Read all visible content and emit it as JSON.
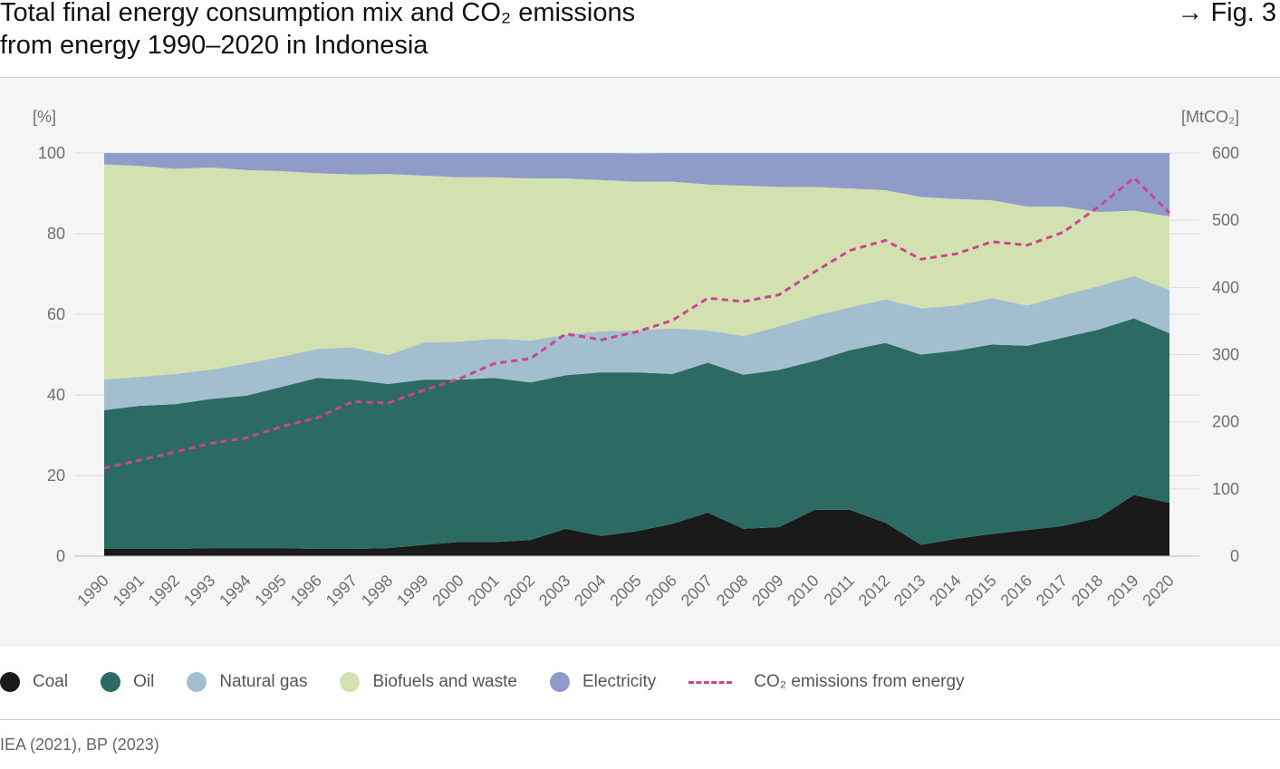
{
  "header": {
    "title_line1": "Total final energy consumption mix and CO₂ emissions",
    "title_line2": "from energy 1990–2020 in Indonesia",
    "fig_ref": "→ Fig. 3"
  },
  "source": "IEA (2021), BP (2023)",
  "colors": {
    "coal": "#1a1a1a",
    "oil": "#2c6b63",
    "natural_gas": "#a3bfcf",
    "biofuels": "#d3e1b0",
    "electricity": "#8f9cc7",
    "co2": "#cc4490",
    "panel_bg": "#f5f5f5"
  },
  "legend": [
    {
      "key": "coal",
      "label": "Coal",
      "kind": "circle"
    },
    {
      "key": "oil",
      "label": "Oil",
      "kind": "circle"
    },
    {
      "key": "natural_gas",
      "label": "Natural gas",
      "kind": "circle"
    },
    {
      "key": "biofuels",
      "label": "Biofuels and waste",
      "kind": "circle"
    },
    {
      "key": "electricity",
      "label": "Electricity",
      "kind": "circle"
    },
    {
      "key": "co2",
      "label": "CO₂ emissions from energy",
      "kind": "dashed-line"
    }
  ],
  "chart_data": {
    "type": "area",
    "stacked": true,
    "y_left_label": "[%]",
    "y_right_label": "[MtCO₂]",
    "y_left_ticks": [
      "100",
      "80",
      "60",
      "40",
      "20",
      "0"
    ],
    "y_right_ticks": [
      "600",
      "500",
      "400",
      "300",
      "200",
      "100",
      "0"
    ],
    "ylim_left": [
      0,
      100
    ],
    "ylim_right": [
      0,
      600
    ],
    "grid": true,
    "legend_position": "bottom",
    "x": [
      1990,
      1991,
      1992,
      1993,
      1994,
      1995,
      1996,
      1997,
      1998,
      1999,
      2000,
      2001,
      2002,
      2003,
      2004,
      2005,
      2006,
      2007,
      2008,
      2009,
      2010,
      2011,
      2012,
      2013,
      2014,
      2015,
      2016,
      2017,
      2018,
      2019,
      2020
    ],
    "series": [
      {
        "key": "coal",
        "name": "Coal",
        "axis": "left",
        "values": [
          1.8,
          1.8,
          1.8,
          2.0,
          2.0,
          2.0,
          1.8,
          1.8,
          2.0,
          2.8,
          3.5,
          3.5,
          4.0,
          6.8,
          5.0,
          6.2,
          8.0,
          10.8,
          6.8,
          7.2,
          11.5,
          11.5,
          8.3,
          2.8,
          4.3,
          5.5,
          6.5,
          7.5,
          9.5,
          15.2,
          13.2
        ]
      },
      {
        "key": "oil",
        "name": "Oil",
        "axis": "left",
        "values": [
          34.4,
          35.5,
          35.9,
          37.0,
          37.8,
          40.0,
          42.4,
          42.0,
          40.7,
          41.0,
          40.3,
          40.7,
          39.1,
          38.1,
          40.6,
          39.4,
          37.2,
          37.2,
          38.2,
          39.0,
          36.9,
          39.6,
          44.6,
          47.2,
          46.7,
          47.0,
          45.7,
          46.7,
          46.7,
          43.8,
          42.1
        ]
      },
      {
        "key": "natural_gas",
        "name": "Natural gas",
        "axis": "left",
        "values": [
          7.6,
          7.2,
          7.5,
          7.3,
          8.0,
          7.5,
          7.2,
          8.0,
          7.2,
          9.2,
          9.4,
          9.8,
          10.4,
          10.0,
          10.2,
          10.4,
          11.3,
          8.0,
          9.6,
          10.8,
          11.2,
          10.6,
          10.8,
          11.5,
          11.2,
          11.5,
          10.0,
          10.5,
          10.8,
          10.5,
          10.7
        ]
      },
      {
        "key": "biofuels",
        "name": "Biofuels and waste",
        "axis": "left",
        "values": [
          53.4,
          52.3,
          50.9,
          50.1,
          48.0,
          46.0,
          43.6,
          42.9,
          44.9,
          41.4,
          40.8,
          40.0,
          40.2,
          38.8,
          37.5,
          36.9,
          36.4,
          36.2,
          37.3,
          34.6,
          32.0,
          29.5,
          27.1,
          27.6,
          26.4,
          24.3,
          24.5,
          22.0,
          18.4,
          16.2,
          18.3
        ]
      },
      {
        "key": "electricity",
        "name": "Electricity",
        "axis": "left",
        "values": [
          2.8,
          3.2,
          3.9,
          3.6,
          4.2,
          4.5,
          5.0,
          5.3,
          5.2,
          5.6,
          6.0,
          6.0,
          6.3,
          6.3,
          6.7,
          7.0,
          7.1,
          7.8,
          8.1,
          8.4,
          8.4,
          8.8,
          9.2,
          10.9,
          11.4,
          11.7,
          13.3,
          13.3,
          14.6,
          14.3,
          15.7
        ]
      },
      {
        "key": "co2",
        "name": "CO₂ emissions from energy",
        "axis": "right",
        "style": "dashed-line",
        "values": [
          131,
          143,
          155,
          168,
          176,
          193,
          206,
          230,
          228,
          247,
          264,
          287,
          294,
          331,
          322,
          334,
          351,
          384,
          379,
          389,
          423,
          455,
          470,
          442,
          450,
          468,
          463,
          482,
          520,
          563,
          511
        ]
      }
    ]
  }
}
